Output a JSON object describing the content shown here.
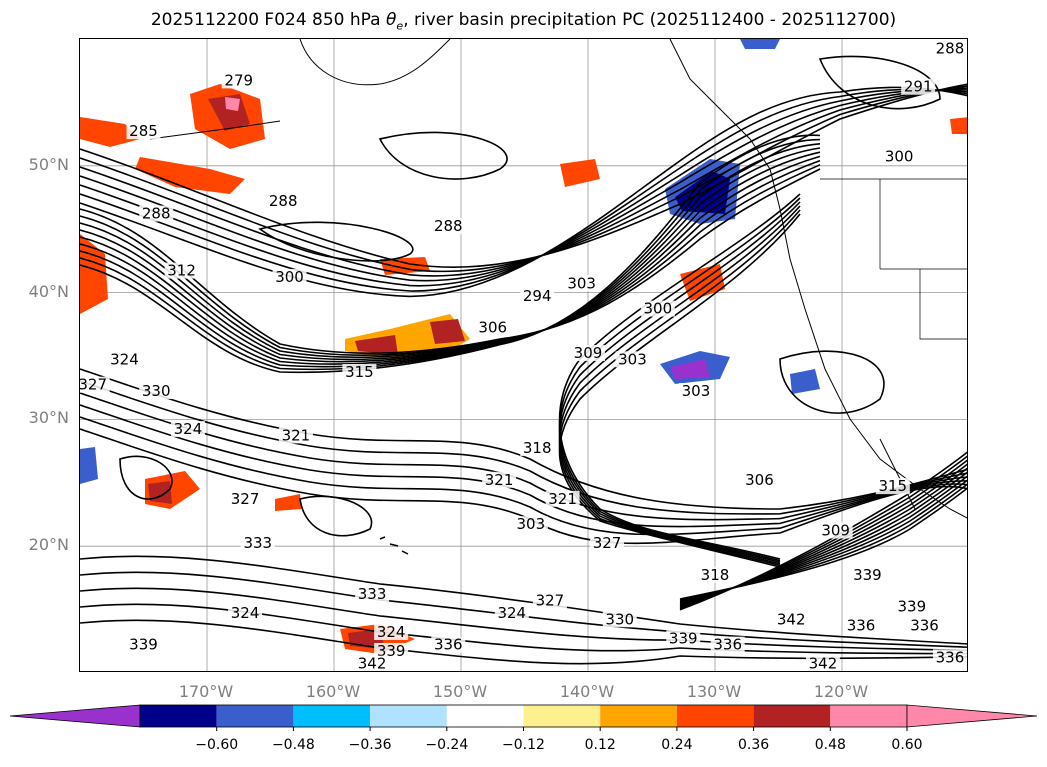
{
  "title": {
    "prefix": "2025112200 F024 850 hPa ",
    "theta": "θ",
    "theta_sub": "e",
    "suffix": ", river basin precipitation PC (2025112400 - 2025112700)"
  },
  "map": {
    "lat_labels": [
      {
        "text": "50°N",
        "lat": 50
      },
      {
        "text": "40°N",
        "lat": 40
      },
      {
        "text": "30°N",
        "lat": 30
      },
      {
        "text": "20°N",
        "lat": 20
      }
    ],
    "lon_labels": [
      {
        "text": "170°W",
        "lon": -170
      },
      {
        "text": "160°W",
        "lon": -160
      },
      {
        "text": "150°W",
        "lon": -150
      },
      {
        "text": "140°W",
        "lon": -140
      },
      {
        "text": "130°W",
        "lon": -130
      },
      {
        "text": "120°W",
        "lon": -120
      }
    ],
    "extent": {
      "lon_min": -180,
      "lon_max": -110,
      "lat_min": 10,
      "lat_max": 60
    },
    "contour_labels": [
      {
        "text": "279",
        "lon": -167.5,
        "lat": 56.5
      },
      {
        "text": "285",
        "lon": -175,
        "lat": 52.5
      },
      {
        "text": "288",
        "lon": -174,
        "lat": 46
      },
      {
        "text": "288",
        "lon": -164,
        "lat": 47
      },
      {
        "text": "288",
        "lon": -151,
        "lat": 45
      },
      {
        "text": "291",
        "lon": -114,
        "lat": 56
      },
      {
        "text": "288",
        "lon": -111.5,
        "lat": 59
      },
      {
        "text": "300",
        "lon": -115.5,
        "lat": 50.5
      },
      {
        "text": "300",
        "lon": -163.5,
        "lat": 41
      },
      {
        "text": "312",
        "lon": -172,
        "lat": 41.5
      },
      {
        "text": "294",
        "lon": -144,
        "lat": 39.5
      },
      {
        "text": "303",
        "lon": -140.5,
        "lat": 40.5
      },
      {
        "text": "306",
        "lon": -147.5,
        "lat": 37
      },
      {
        "text": "300",
        "lon": -134.5,
        "lat": 38.5
      },
      {
        "text": "309",
        "lon": -140,
        "lat": 35
      },
      {
        "text": "303",
        "lon": -136.5,
        "lat": 34.5
      },
      {
        "text": "303",
        "lon": -131.5,
        "lat": 32
      },
      {
        "text": "315",
        "lon": -158,
        "lat": 33.5
      },
      {
        "text": "330",
        "lon": -174,
        "lat": 32
      },
      {
        "text": "324",
        "lon": -176.5,
        "lat": 34.5
      },
      {
        "text": "327",
        "lon": -179,
        "lat": 32.5
      },
      {
        "text": "324",
        "lon": -171.5,
        "lat": 29
      },
      {
        "text": "321",
        "lon": -163,
        "lat": 28.5
      },
      {
        "text": "318",
        "lon": -144,
        "lat": 27.5
      },
      {
        "text": "321",
        "lon": -147,
        "lat": 25
      },
      {
        "text": "306",
        "lon": -126.5,
        "lat": 25
      },
      {
        "text": "315",
        "lon": -116,
        "lat": 24.5
      },
      {
        "text": "327",
        "lon": -167,
        "lat": 23.5
      },
      {
        "text": "321",
        "lon": -142,
        "lat": 23.5
      },
      {
        "text": "303",
        "lon": -144.5,
        "lat": 21.5
      },
      {
        "text": "327",
        "lon": -138.5,
        "lat": 20
      },
      {
        "text": "309",
        "lon": -120.5,
        "lat": 21
      },
      {
        "text": "333",
        "lon": -166,
        "lat": 20
      },
      {
        "text": "318",
        "lon": -130,
        "lat": 17.5
      },
      {
        "text": "339",
        "lon": -118,
        "lat": 17.5
      },
      {
        "text": "333",
        "lon": -157,
        "lat": 16
      },
      {
        "text": "327",
        "lon": -143,
        "lat": 15.5
      },
      {
        "text": "324",
        "lon": -146,
        "lat": 14.5
      },
      {
        "text": "324",
        "lon": -167,
        "lat": 14.5
      },
      {
        "text": "339",
        "lon": -114.5,
        "lat": 15
      },
      {
        "text": "342",
        "lon": -124,
        "lat": 14
      },
      {
        "text": "336",
        "lon": -113.5,
        "lat": 13.5
      },
      {
        "text": "336",
        "lon": -118.5,
        "lat": 13.5
      },
      {
        "text": "330",
        "lon": -137.5,
        "lat": 14
      },
      {
        "text": "324",
        "lon": -155.5,
        "lat": 13
      },
      {
        "text": "336",
        "lon": -151,
        "lat": 12
      },
      {
        "text": "339",
        "lon": -175,
        "lat": 12
      },
      {
        "text": "339",
        "lon": -155.5,
        "lat": 11.5
      },
      {
        "text": "339",
        "lon": -132.5,
        "lat": 12.5
      },
      {
        "text": "336",
        "lon": -129,
        "lat": 12
      },
      {
        "text": "342",
        "lon": -157,
        "lat": 10.5
      },
      {
        "text": "342",
        "lon": -121.5,
        "lat": 10.5
      },
      {
        "text": "336",
        "lon": -111.5,
        "lat": 11
      }
    ]
  },
  "colorbar": {
    "tick_labels": [
      "−0.60",
      "−0.48",
      "−0.36",
      "−0.24",
      "−0.12",
      "0.12",
      "0.24",
      "0.36",
      "0.48",
      "0.60"
    ],
    "colors": [
      "#9932cc",
      "#00008b",
      "#3a5fcd",
      "#00bfff",
      "#b0e2ff",
      "#ffffff",
      "#fff08f",
      "#ffa500",
      "#ff4500",
      "#b22222",
      "#ff88aa",
      "#ff88aa"
    ],
    "extend_min_color": "#9932cc",
    "extend_max_color": "#ff88aa"
  }
}
